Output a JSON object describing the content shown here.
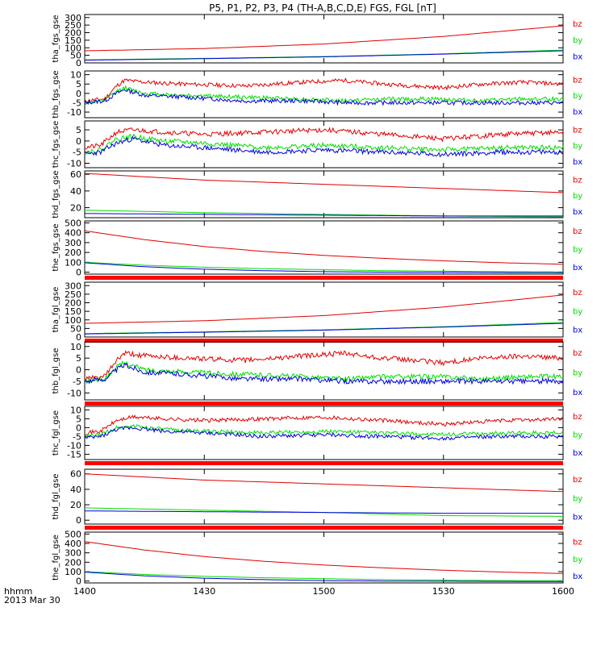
{
  "title": "P5, P1, P2, P3, P4 (TH-A,B,C,D,E) FGS, FGL [nT]",
  "footer": {
    "line1": "hhmm",
    "line2": "2013 Mar 30"
  },
  "colors": {
    "bz": "#e00000",
    "by": "#00dd00",
    "bx": "#0000e0",
    "axis": "#000000",
    "flag": "#ff0000"
  },
  "chart_data": [
    {
      "type": "line",
      "ylabel": "tha_fgs_gse",
      "yticks": [
        0,
        50,
        100,
        150,
        200,
        250,
        300
      ],
      "ylim": [
        0,
        320
      ],
      "legend": [
        "bz",
        "by",
        "bx"
      ],
      "series": [
        {
          "name": "bz",
          "x": [
            0,
            30,
            60,
            90,
            120
          ],
          "y": [
            80,
            95,
            125,
            175,
            245
          ]
        },
        {
          "name": "by",
          "x": [
            0,
            30,
            60,
            90,
            120
          ],
          "y": [
            20,
            30,
            42,
            60,
            85
          ]
        },
        {
          "name": "bx",
          "x": [
            0,
            30,
            60,
            90,
            120
          ],
          "y": [
            18,
            28,
            40,
            58,
            80
          ]
        }
      ]
    },
    {
      "type": "line",
      "ylabel": "thb_fgs_gse",
      "yticks": [
        -10,
        -5,
        0,
        5,
        10
      ],
      "ylim": [
        -13,
        12
      ],
      "legend": [
        "bz",
        "by",
        "bx"
      ],
      "series": [
        {
          "name": "bz",
          "x": [
            0,
            5,
            8,
            10,
            15,
            25,
            40,
            55,
            65,
            75,
            90,
            100,
            110,
            120
          ],
          "y": [
            -4,
            -3,
            4,
            7,
            6,
            5,
            4,
            6,
            7,
            5,
            3,
            5,
            6,
            5
          ]
        },
        {
          "name": "by",
          "x": [
            0,
            5,
            8,
            10,
            15,
            25,
            40,
            55,
            65,
            75,
            90,
            100,
            110,
            120
          ],
          "y": [
            -5,
            -4,
            1,
            3,
            0,
            -1,
            -2,
            -3,
            -4,
            -3,
            -3,
            -4,
            -3,
            -3
          ]
        },
        {
          "name": "bx",
          "x": [
            0,
            5,
            8,
            10,
            15,
            25,
            40,
            55,
            65,
            75,
            90,
            100,
            110,
            120
          ],
          "y": [
            -5,
            -4,
            0,
            2,
            -1,
            -2,
            -4,
            -4,
            -5,
            -5,
            -5,
            -5,
            -5,
            -5
          ]
        }
      ]
    },
    {
      "type": "line",
      "ylabel": "thc_fgs_gse",
      "yticks": [
        -10,
        -5,
        0,
        5
      ],
      "ylim": [
        -12,
        9
      ],
      "legend": [
        "bz",
        "by",
        "bx"
      ],
      "series": [
        {
          "name": "bz",
          "x": [
            0,
            4,
            8,
            12,
            20,
            30,
            45,
            60,
            75,
            90,
            105,
            120
          ],
          "y": [
            -3,
            -2,
            4,
            5,
            4,
            3,
            4,
            5,
            3,
            1,
            3,
            4
          ]
        },
        {
          "name": "by",
          "x": [
            0,
            4,
            8,
            12,
            20,
            30,
            45,
            60,
            75,
            90,
            105,
            120
          ],
          "y": [
            -5,
            -4,
            1,
            2,
            0,
            -1,
            -3,
            -2,
            -3,
            -4,
            -3,
            -3
          ]
        },
        {
          "name": "bx",
          "x": [
            0,
            4,
            8,
            12,
            20,
            30,
            45,
            60,
            75,
            90,
            105,
            120
          ],
          "y": [
            -6,
            -5,
            -1,
            1,
            -2,
            -3,
            -5,
            -4,
            -5,
            -6,
            -5,
            -5
          ]
        }
      ]
    },
    {
      "type": "line",
      "ylabel": "thd_fgs_gse",
      "yticks": [
        20,
        40,
        60
      ],
      "ylim": [
        8,
        64
      ],
      "legend": [
        "bz",
        "by",
        "bx"
      ],
      "series": [
        {
          "name": "bz",
          "x": [
            0,
            30,
            60,
            90,
            120
          ],
          "y": [
            61,
            53,
            48,
            43,
            38
          ]
        },
        {
          "name": "by",
          "x": [
            0,
            30,
            60,
            90,
            120
          ],
          "y": [
            17,
            14,
            12,
            10,
            9
          ]
        },
        {
          "name": "bx",
          "x": [
            0,
            30,
            60,
            90,
            120
          ],
          "y": [
            13,
            12,
            11,
            10,
            10
          ]
        }
      ]
    },
    {
      "type": "line",
      "ylabel": "the_fgs_gse",
      "yticks": [
        0,
        100,
        200,
        300,
        400,
        500
      ],
      "ylim": [
        -20,
        520
      ],
      "legend": [
        "bz",
        "by",
        "bx"
      ],
      "series": [
        {
          "name": "bz",
          "x": [
            0,
            15,
            30,
            45,
            60,
            75,
            90,
            105,
            120
          ],
          "y": [
            420,
            330,
            260,
            210,
            170,
            140,
            115,
            95,
            80
          ]
        },
        {
          "name": "by",
          "x": [
            0,
            15,
            30,
            45,
            60,
            75,
            90,
            105,
            120
          ],
          "y": [
            100,
            70,
            50,
            35,
            25,
            15,
            10,
            5,
            3
          ]
        },
        {
          "name": "bx",
          "x": [
            0,
            15,
            30,
            45,
            60,
            75,
            90,
            105,
            120
          ],
          "y": [
            95,
            55,
            30,
            15,
            5,
            0,
            -2,
            -4,
            -5
          ]
        }
      ]
    },
    {
      "type": "line",
      "ylabel": "tha_fgl_gse",
      "yticks": [
        0,
        50,
        100,
        150,
        200,
        250,
        300
      ],
      "ylim": [
        0,
        320
      ],
      "legend": [
        "bz",
        "by",
        "bx"
      ],
      "series": [
        {
          "name": "bz",
          "x": [
            0,
            30,
            60,
            90,
            120
          ],
          "y": [
            80,
            95,
            125,
            175,
            245
          ]
        },
        {
          "name": "by",
          "x": [
            0,
            30,
            60,
            90,
            120
          ],
          "y": [
            20,
            30,
            42,
            60,
            85
          ]
        },
        {
          "name": "bx",
          "x": [
            0,
            30,
            60,
            90,
            120
          ],
          "y": [
            18,
            28,
            40,
            58,
            80
          ]
        }
      ]
    },
    {
      "type": "line",
      "ylabel": "thb_fgl_gse",
      "yticks": [
        -10,
        -5,
        0,
        5,
        10
      ],
      "ylim": [
        -13,
        12
      ],
      "legend": [
        "bz",
        "by",
        "bx"
      ],
      "series": [
        {
          "name": "bz",
          "x": [
            0,
            5,
            8,
            10,
            15,
            25,
            40,
            55,
            65,
            75,
            90,
            100,
            110,
            120
          ],
          "y": [
            -4,
            -3,
            4,
            7,
            6,
            5,
            4,
            6,
            7,
            5,
            3,
            5,
            6,
            5
          ]
        },
        {
          "name": "by",
          "x": [
            0,
            5,
            8,
            10,
            15,
            25,
            40,
            55,
            65,
            75,
            90,
            100,
            110,
            120
          ],
          "y": [
            -5,
            -4,
            1,
            3,
            0,
            -1,
            -2,
            -3,
            -4,
            -3,
            -3,
            -4,
            -3,
            -3
          ]
        },
        {
          "name": "bx",
          "x": [
            0,
            5,
            8,
            10,
            15,
            25,
            40,
            55,
            65,
            75,
            90,
            100,
            110,
            120
          ],
          "y": [
            -5,
            -4,
            0,
            2,
            -1,
            -2,
            -4,
            -4,
            -5,
            -5,
            -5,
            -5,
            -5,
            -5
          ]
        }
      ]
    },
    {
      "type": "line",
      "ylabel": "thc_fgl_gse",
      "yticks": [
        -15,
        -10,
        -5,
        0,
        5,
        10
      ],
      "ylim": [
        -18,
        12
      ],
      "legend": [
        "bz",
        "by",
        "bx"
      ],
      "series": [
        {
          "name": "bz",
          "x": [
            0,
            4,
            8,
            12,
            20,
            30,
            45,
            60,
            75,
            90,
            105,
            120
          ],
          "y": [
            -3,
            -2,
            4,
            6,
            5,
            4,
            5,
            6,
            4,
            2,
            4,
            5
          ]
        },
        {
          "name": "by",
          "x": [
            0,
            4,
            8,
            12,
            20,
            30,
            45,
            60,
            75,
            90,
            105,
            120
          ],
          "y": [
            -5,
            -4,
            0,
            1,
            -1,
            -2,
            -3,
            -2,
            -3,
            -4,
            -3,
            -3
          ]
        },
        {
          "name": "bx",
          "x": [
            0,
            4,
            8,
            12,
            20,
            30,
            45,
            60,
            75,
            90,
            105,
            120
          ],
          "y": [
            -6,
            -5,
            -1,
            0,
            -2,
            -3,
            -5,
            -4,
            -5,
            -6,
            -5,
            -5
          ]
        }
      ]
    },
    {
      "type": "line",
      "ylabel": "thd_fgl_gse",
      "yticks": [
        0,
        20,
        40,
        60
      ],
      "ylim": [
        -5,
        66
      ],
      "legend": [
        "bz",
        "by",
        "bx"
      ],
      "series": [
        {
          "name": "bz",
          "x": [
            0,
            30,
            60,
            90,
            120
          ],
          "y": [
            60,
            52,
            47,
            42,
            37
          ]
        },
        {
          "name": "by",
          "x": [
            0,
            30,
            60,
            90,
            120
          ],
          "y": [
            16,
            13,
            10,
            6,
            5
          ]
        },
        {
          "name": "bx",
          "x": [
            0,
            30,
            60,
            90,
            120
          ],
          "y": [
            12,
            11,
            10,
            9,
            9
          ]
        }
      ]
    },
    {
      "type": "line",
      "ylabel": "the_fgl_gse",
      "yticks": [
        0,
        100,
        200,
        300,
        400,
        500
      ],
      "ylim": [
        -20,
        520
      ],
      "legend": [
        "bz",
        "by",
        "bx"
      ],
      "series": [
        {
          "name": "bz",
          "x": [
            0,
            15,
            30,
            45,
            60,
            75,
            90,
            105,
            120
          ],
          "y": [
            420,
            330,
            260,
            210,
            170,
            140,
            115,
            95,
            80
          ]
        },
        {
          "name": "by",
          "x": [
            0,
            15,
            30,
            45,
            60,
            75,
            90,
            105,
            120
          ],
          "y": [
            100,
            70,
            50,
            35,
            25,
            15,
            10,
            5,
            3
          ]
        },
        {
          "name": "bx",
          "x": [
            0,
            15,
            30,
            45,
            60,
            75,
            90,
            105,
            120
          ],
          "y": [
            95,
            55,
            30,
            15,
            5,
            0,
            -2,
            -4,
            -5
          ]
        }
      ]
    }
  ],
  "x_axis": {
    "range": [
      0,
      120
    ],
    "ticks": [
      0,
      30,
      60,
      90,
      120
    ],
    "labels": [
      "1400",
      "1430",
      "1500",
      "1530",
      "1600"
    ]
  }
}
